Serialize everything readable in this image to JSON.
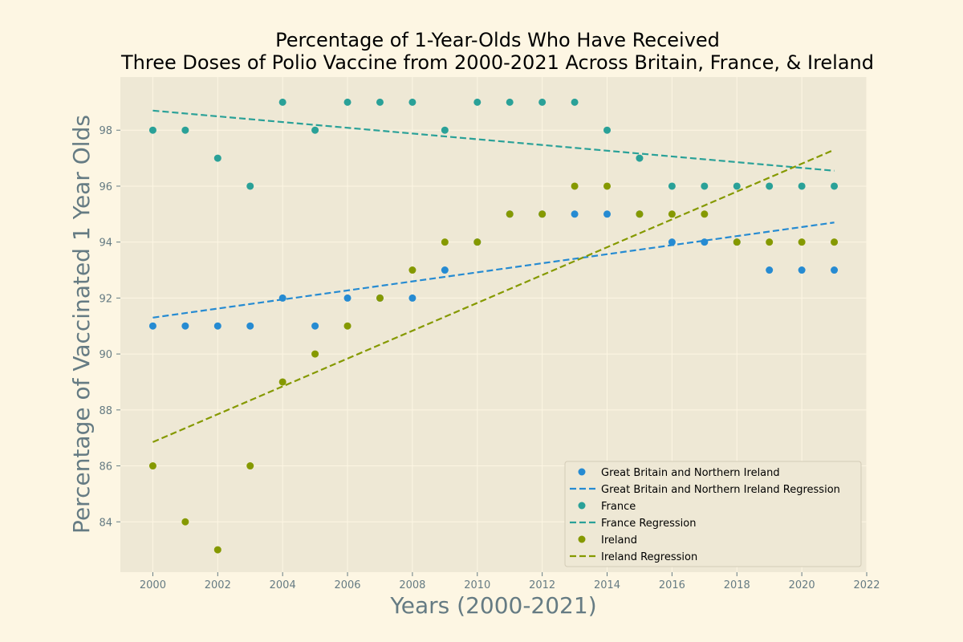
{
  "chart_data": {
    "type": "scatter",
    "title": "Percentage of 1-Year-Olds Who Have Received\nThree Doses of Polio Vaccine from 2000-2021 Across Britain, France, & Ireland",
    "xlabel": "Years (2000-2021)",
    "ylabel": "Percentage of Vaccinated 1 Year Olds",
    "xlim": [
      1999,
      2022
    ],
    "ylim": [
      82.2,
      99.9
    ],
    "xticks": [
      2000,
      2002,
      2004,
      2006,
      2008,
      2010,
      2012,
      2014,
      2016,
      2018,
      2020,
      2022
    ],
    "yticks": [
      84,
      86,
      88,
      90,
      92,
      94,
      96,
      98
    ],
    "grid": true,
    "legend_position": "lower-right",
    "x": [
      2000,
      2001,
      2002,
      2003,
      2004,
      2005,
      2006,
      2007,
      2008,
      2009,
      2010,
      2011,
      2012,
      2013,
      2014,
      2015,
      2016,
      2017,
      2018,
      2019,
      2020,
      2021
    ],
    "series": [
      {
        "name": "Great Britain and Northern Ireland",
        "color": "#268bd2",
        "values": [
          91,
          91,
          91,
          91,
          92,
          91,
          92,
          92,
          92,
          93,
          94,
          95,
          95,
          95,
          95,
          95,
          94,
          94,
          94,
          93,
          93,
          93
        ],
        "regression_name": "Great Britain and Northern Ireland Regression",
        "regression_x": [
          2000,
          2021
        ],
        "regression_y": [
          91.3,
          94.7
        ]
      },
      {
        "name": "France",
        "color": "#2aa198",
        "values": [
          98,
          98,
          97,
          96,
          99,
          98,
          99,
          99,
          99,
          98,
          99,
          99,
          99,
          99,
          98,
          97,
          96,
          96,
          96,
          96,
          96,
          96
        ],
        "regression_name": "France Regression",
        "regression_x": [
          2000,
          2021
        ],
        "regression_y": [
          98.7,
          96.55
        ]
      },
      {
        "name": "Ireland",
        "color": "#859900",
        "values": [
          86,
          84,
          83,
          86,
          89,
          90,
          91,
          92,
          93,
          94,
          94,
          95,
          95,
          96,
          96,
          95,
          95,
          95,
          94,
          94,
          94,
          94
        ],
        "regression_name": "Ireland Regression",
        "regression_x": [
          2000,
          2021
        ],
        "regression_y": [
          86.85,
          97.3
        ]
      }
    ]
  }
}
